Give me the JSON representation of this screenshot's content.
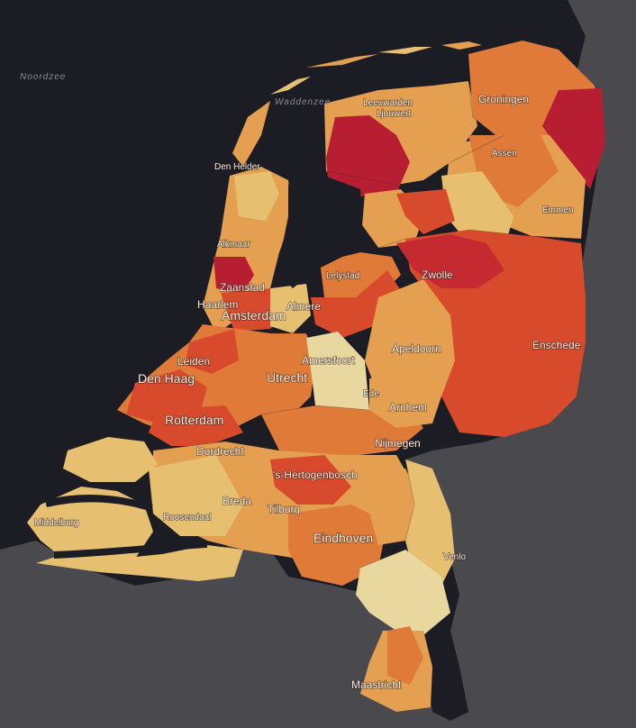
{
  "map": {
    "water_labels": {
      "north_sea": "Noordzee",
      "wadden": "Waddenzee"
    },
    "cities": {
      "den_helder": "Den Helder",
      "leeuwarden": "Leeuwarden",
      "ljouwert": "Ljouwert",
      "groningen": "Groningen",
      "assen": "Assen",
      "emmen": "Emmen",
      "alkmaar": "Alkmaar",
      "lelystad": "Lelystad",
      "zwolle": "Zwolle",
      "zaanstad": "Zaanstad",
      "haarlem": "Haarlem",
      "amsterdam": "Amsterdam",
      "almere": "Almere",
      "enschede": "Enschede",
      "leiden": "Leiden",
      "amersfoort": "Amersfoort",
      "apeldoorn": "Apeldoorn",
      "den_haag": "Den Haag",
      "utrecht": "Utrecht",
      "ede": "Ede",
      "arnhem": "Arnhem",
      "rotterdam": "Rotterdam",
      "nijmegen": "Nijmegen",
      "dordrecht": "Dordrecht",
      "s_hertogenbosch": "'s-Hertogenbosch",
      "breda": "Breda",
      "tilburg": "Tilburg",
      "middelburg": "Middelburg",
      "roosendaal": "Roosendaal",
      "eindhoven": "Eindhoven",
      "venlo": "Venlo",
      "maastricht": "Maastricht"
    },
    "colors": {
      "water": "#1c1c24",
      "land_outside": "#4a494d",
      "class_1": "#e8d8a0",
      "class_2": "#e6c070",
      "class_3": "#e4a050",
      "class_4": "#e07a38",
      "class_5": "#d84a2c",
      "class_6": "#b81e32"
    }
  }
}
